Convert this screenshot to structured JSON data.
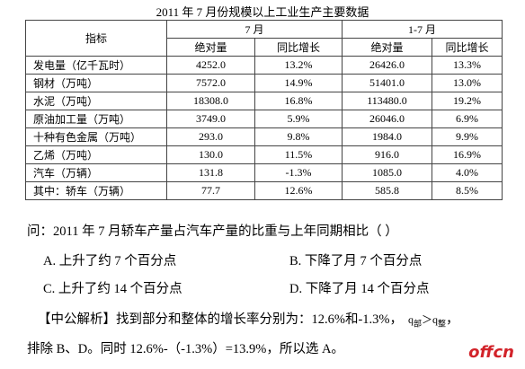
{
  "header": {
    "title": "2011 年 7 月份规模以上工业生产主要数据"
  },
  "table": {
    "header_row1": [
      "指标",
      "7 月",
      "1-7 月"
    ],
    "header_row2": [
      "绝对量",
      "同比增长",
      "绝对量",
      "同比增长"
    ],
    "rows": [
      [
        "发电量（亿千瓦时）",
        "4252.0",
        "13.2%",
        "26426.0",
        "13.3%"
      ],
      [
        "钢材（万吨）",
        "7572.0",
        "14.9%",
        "51401.0",
        "13.0%"
      ],
      [
        "水泥（万吨）",
        "18308.0",
        "16.8%",
        "113480.0",
        "19.2%"
      ],
      [
        "原油加工量（万吨）",
        "3749.0",
        "5.9%",
        "26046.0",
        "6.9%"
      ],
      [
        "十种有色金属（万吨）",
        "293.0",
        "9.8%",
        "1984.0",
        "9.9%"
      ],
      [
        "乙烯（万吨）",
        "130.0",
        "11.5%",
        "916.0",
        "16.9%"
      ],
      [
        "汽车（万辆）",
        "131.8",
        "-1.3%",
        "1085.0",
        "4.0%"
      ],
      [
        "其中：轿车（万辆）",
        "77.7",
        "12.6%",
        "585.8",
        "8.5%"
      ]
    ]
  },
  "question": "问：2011 年 7 月轿车产量占汽车产量的比重与上年同期相比（   ）",
  "options": [
    "A. 上升了约 7 个百分点",
    "B. 下降了月 7 个百分点",
    "C. 上升了约 14 个百分点",
    "D. 下降了月 14 个百分点"
  ],
  "analysis": {
    "text1": "【中公解析】找到部分和整体的增长率分别为：12.6%和-1.3%，",
    "formula": [
      "q",
      "部",
      "＞",
      "q",
      "整"
    ],
    "text1_end": "，",
    "text2": "排除 B、D。同时 12.6%-（-1.3%）=13.9%，所以选 A。"
  },
  "watermark": "offcn"
}
